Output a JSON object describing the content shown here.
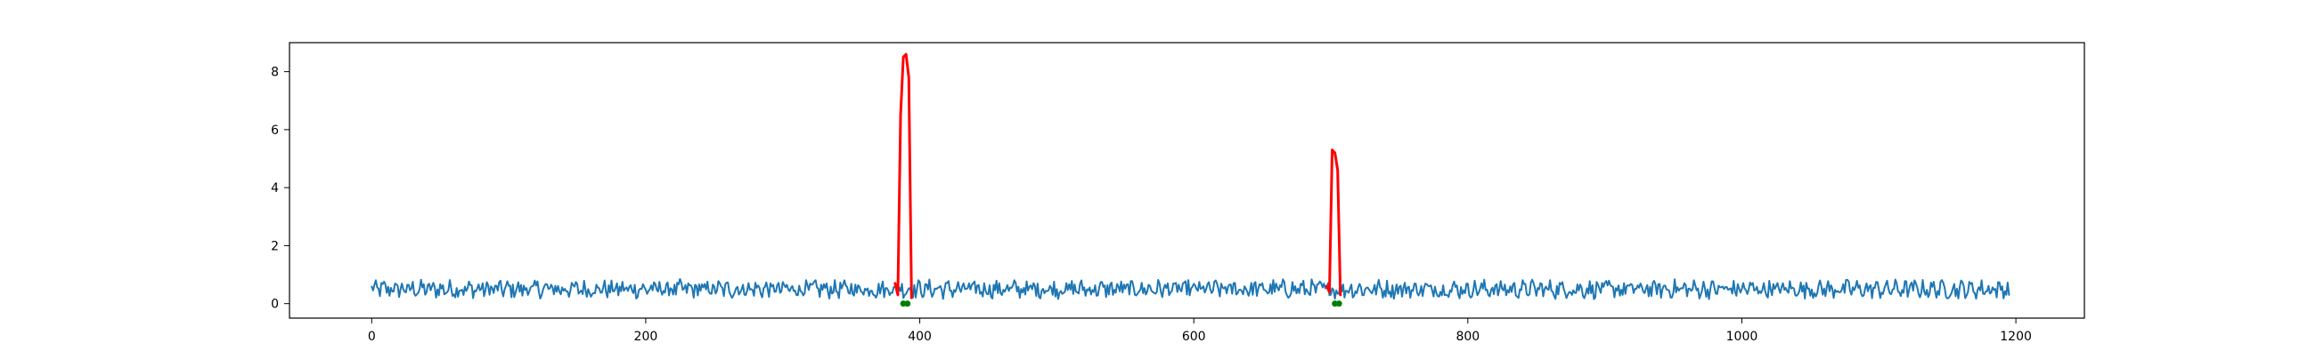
{
  "chart_data": {
    "type": "line",
    "title": "",
    "xlabel": "",
    "ylabel": "",
    "xlim": [
      -60,
      1250
    ],
    "ylim": [
      -0.5,
      9.0
    ],
    "grid": false,
    "legend": "none",
    "x_ticks": [
      0,
      200,
      400,
      600,
      800,
      1000,
      1200
    ],
    "y_ticks": [
      0,
      2,
      4,
      6,
      8
    ],
    "x_tick_labels": [
      "0",
      "200",
      "400",
      "600",
      "800",
      "1000",
      "1200"
    ],
    "y_tick_labels": [
      "0",
      "2",
      "4",
      "6",
      "8"
    ],
    "series": [
      {
        "role": "signal",
        "color": "#1f77b4",
        "x_start": 0,
        "x_end": 1195,
        "mean": 0.5,
        "min": 0.0,
        "max": 1.0
      },
      {
        "role": "anomaly",
        "color": "#ff0000",
        "x": [
          382,
          384,
          386,
          388,
          390,
          392,
          394
        ],
        "y": [
          0.7,
          0.3,
          6.5,
          8.5,
          8.6,
          7.8,
          0.2
        ]
      },
      {
        "role": "anomaly",
        "color": "#ff0000",
        "x": [
          697,
          699,
          701,
          703,
          705,
          707
        ],
        "y": [
          0.6,
          0.4,
          5.3,
          5.2,
          4.6,
          0.3
        ]
      }
    ],
    "markers": [
      {
        "color": "#008000",
        "x": [
          388,
          391
        ],
        "y": [
          0.0,
          0.0
        ]
      },
      {
        "color": "#008000",
        "x": [
          703,
          706
        ],
        "y": [
          0.0,
          0.0
        ]
      }
    ]
  }
}
